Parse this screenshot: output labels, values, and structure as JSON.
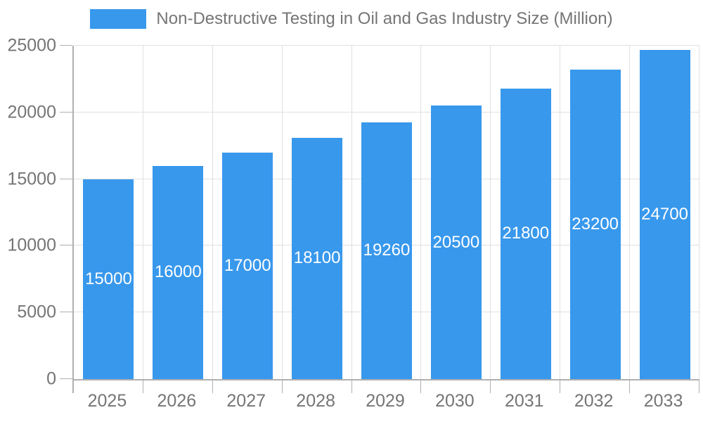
{
  "chart_data": {
    "type": "bar",
    "title": "Non-Destructive Testing in Oil and Gas Industry Size (Million)",
    "categories": [
      "2025",
      "2026",
      "2027",
      "2028",
      "2029",
      "2030",
      "2031",
      "2032",
      "2033"
    ],
    "values": [
      15000,
      16000,
      17000,
      18100,
      19260,
      20500,
      21800,
      23200,
      24700
    ],
    "value_labels": [
      "15000",
      "16000",
      "17000",
      "18100",
      "19260",
      "20500",
      "21800",
      "23200",
      "24700"
    ],
    "xlabel": "",
    "ylabel": "",
    "ylim": [
      0,
      25000
    ],
    "ytick_interval": 5000,
    "ytick_labels": [
      "0",
      "5000",
      "10000",
      "15000",
      "20000",
      "25000"
    ],
    "grid": true,
    "legend_position": "top",
    "colors": {
      "bar": "#3898ec",
      "grid": "#e0e0e0",
      "axis": "#b0b0b0",
      "text": "#757575",
      "value_label": "#ffffff",
      "background": "#ffffff"
    }
  }
}
